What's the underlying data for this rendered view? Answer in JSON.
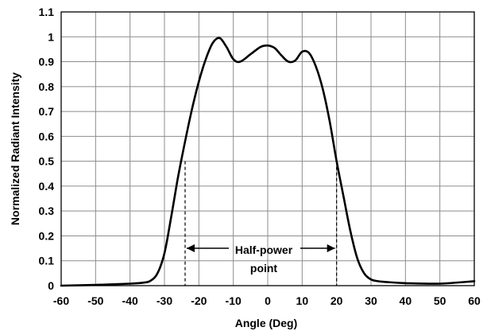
{
  "chart_data": {
    "type": "line",
    "title": "",
    "xlabel": "Angle (Deg)",
    "ylabel": "Normalized Radiant Intensity",
    "xlim": [
      -60,
      60
    ],
    "ylim": [
      0,
      1.1
    ],
    "x_ticks": [
      -60,
      -50,
      -40,
      -30,
      -20,
      -10,
      0,
      10,
      20,
      30,
      40,
      50,
      60
    ],
    "y_ticks": [
      0,
      0.1,
      0.2,
      0.3,
      0.4,
      0.5,
      0.6,
      0.7,
      0.8,
      0.9,
      1,
      1.1
    ],
    "y_tick_labels": [
      "0",
      "0.1",
      "0.2",
      "0.3",
      "0.4",
      "0.5",
      "0.6",
      "0.7",
      "0.8",
      "0.9",
      "1",
      "1.1"
    ],
    "grid": true,
    "series": [
      {
        "x": [
          -60,
          -50,
          -40,
          -36,
          -34,
          -32,
          -30,
          -28,
          -26,
          -24,
          -22,
          -20,
          -18,
          -16,
          -14,
          -12,
          -10,
          -8,
          -5,
          -2,
          0,
          2,
          4,
          6,
          8,
          10,
          12,
          14,
          16,
          18,
          20,
          22,
          24,
          26,
          28,
          30,
          32,
          34,
          40,
          50,
          60
        ],
        "y": [
          0.0,
          0.003,
          0.008,
          0.012,
          0.02,
          0.05,
          0.13,
          0.28,
          0.44,
          0.58,
          0.71,
          0.82,
          0.91,
          0.975,
          0.995,
          0.96,
          0.91,
          0.9,
          0.93,
          0.96,
          0.965,
          0.955,
          0.925,
          0.9,
          0.905,
          0.94,
          0.935,
          0.88,
          0.79,
          0.66,
          0.5,
          0.36,
          0.22,
          0.11,
          0.05,
          0.025,
          0.018,
          0.015,
          0.01,
          0.008,
          0.018
        ]
      }
    ],
    "half_power_markers": [
      -24,
      20
    ],
    "annotation": {
      "line1": "Half-power",
      "line2": "point"
    }
  }
}
